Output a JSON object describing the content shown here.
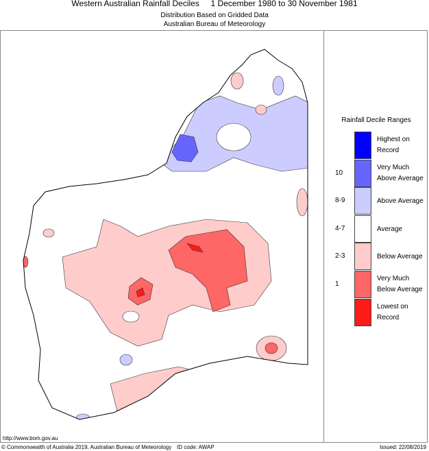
{
  "title": "Western Australian Rainfall Deciles     1 December 1980 to 30 November 1981",
  "subtitle1": "Distribution Based on Gridded Data",
  "subtitle2": "Australian Bureau of Meteorology",
  "legend": {
    "title": "Rainfall Decile Ranges",
    "items": [
      {
        "label1": "Highest on",
        "label2": "Record",
        "decile": "",
        "color": "#0000ff"
      },
      {
        "label1": "Very Much",
        "label2": "Above Average",
        "decile": "10",
        "color": "#6666ff"
      },
      {
        "label1": "Above Average",
        "label2": "",
        "decile": "8-9",
        "color": "#ccccff"
      },
      {
        "label1": "Average",
        "label2": "",
        "decile": "4-7",
        "color": "#ffffff"
      },
      {
        "label1": "Below Average",
        "label2": "",
        "decile": "2-3",
        "color": "#ffcccc"
      },
      {
        "label1": "Very Much",
        "label2": "Below Average",
        "decile": "1",
        "color": "#ff6666"
      },
      {
        "label1": "Lowest on",
        "label2": "Record",
        "decile": "",
        "color": "#ff1a1a"
      }
    ]
  },
  "footer": {
    "url": "http://www.bom.gov.au",
    "copyright": "© Commonwealth of Australia 2019, Australian Bureau of Meteorology",
    "id_code": "ID code: AWAP",
    "issued": "Issued: 22/08/2019"
  }
}
